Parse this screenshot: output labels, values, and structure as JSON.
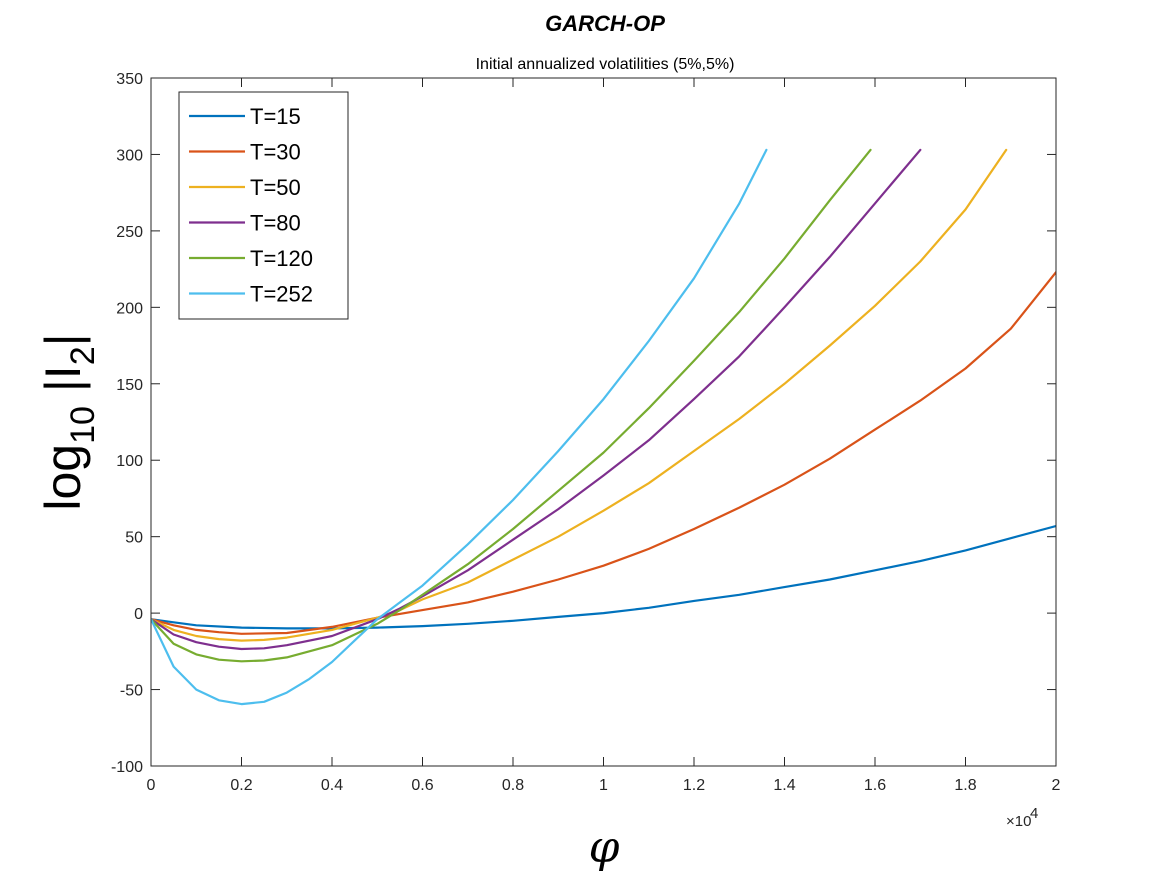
{
  "chart_data": {
    "type": "line",
    "title": "GARCH-OP",
    "subtitle": "Initial annualized volatilities (5%,5%)",
    "xlabel": "φ",
    "ylabel_base": "log",
    "ylabel_sub": "10",
    "ylabel_mid": " |I",
    "ylabel_sub2": "2",
    "ylabel_end": "|",
    "x_multiplier_prefix": "×10",
    "x_multiplier_exp": "4",
    "xlim": [
      0,
      2
    ],
    "ylim": [
      -100,
      350
    ],
    "xticks": [
      0,
      0.2,
      0.4,
      0.6,
      0.8,
      1,
      1.2,
      1.4,
      1.6,
      1.8,
      2
    ],
    "xtick_labels": [
      "0",
      "0.2",
      "0.4",
      "0.6",
      "0.8",
      "1",
      "1.2",
      "1.4",
      "1.6",
      "1.8",
      "2"
    ],
    "yticks": [
      -100,
      -50,
      0,
      50,
      100,
      150,
      200,
      250,
      300,
      350
    ],
    "ytick_labels": [
      "-100",
      "-50",
      "0",
      "50",
      "100",
      "150",
      "200",
      "250",
      "300",
      "350"
    ],
    "legend_position": "top-left",
    "grid": false,
    "series": [
      {
        "name": "T=15",
        "color": "#0072BD",
        "x": [
          0,
          0.05,
          0.1,
          0.2,
          0.3,
          0.4,
          0.5,
          0.6,
          0.7,
          0.8,
          0.9,
          1.0,
          1.1,
          1.2,
          1.3,
          1.4,
          1.5,
          1.6,
          1.7,
          1.8,
          1.9,
          2.0
        ],
        "y": [
          -4,
          -6,
          -8,
          -9.5,
          -10,
          -10,
          -9.5,
          -8.5,
          -7,
          -5,
          -2.5,
          0,
          3.5,
          8,
          12,
          17,
          22,
          28,
          34,
          41,
          49,
          57
        ]
      },
      {
        "name": "T=30",
        "color": "#D95319",
        "x": [
          0,
          0.05,
          0.1,
          0.15,
          0.2,
          0.3,
          0.4,
          0.5,
          0.6,
          0.7,
          0.8,
          0.9,
          1.0,
          1.1,
          1.2,
          1.3,
          1.4,
          1.5,
          1.6,
          1.7,
          1.8,
          1.9,
          2.0
        ],
        "y": [
          -4,
          -8,
          -11,
          -12.5,
          -13.5,
          -13,
          -9,
          -3,
          2,
          7,
          14,
          22,
          31,
          42,
          55,
          69,
          84,
          101,
          120,
          139,
          160,
          186,
          223
        ]
      },
      {
        "name": "T=50",
        "color": "#EDB120",
        "x": [
          0,
          0.05,
          0.1,
          0.15,
          0.2,
          0.25,
          0.3,
          0.4,
          0.5,
          0.55,
          0.6,
          0.7,
          0.8,
          0.9,
          1.0,
          1.1,
          1.2,
          1.3,
          1.4,
          1.5,
          1.6,
          1.7,
          1.8,
          1.89
        ],
        "y": [
          -4,
          -11,
          -15,
          -17,
          -18,
          -17.5,
          -16,
          -11,
          -3,
          2,
          9,
          20,
          35,
          50,
          67,
          85,
          106,
          127,
          150,
          175,
          201,
          230,
          264,
          303
        ]
      },
      {
        "name": "T=80",
        "color": "#7E2F8E",
        "x": [
          0,
          0.05,
          0.1,
          0.15,
          0.2,
          0.25,
          0.3,
          0.4,
          0.5,
          0.55,
          0.6,
          0.7,
          0.8,
          0.9,
          1.0,
          1.1,
          1.2,
          1.3,
          1.4,
          1.5,
          1.6,
          1.7
        ],
        "y": [
          -4,
          -14,
          -19,
          -22,
          -23.5,
          -23,
          -21,
          -15,
          -4,
          3,
          11,
          28,
          48,
          68,
          90,
          113,
          140,
          168,
          200,
          233,
          268,
          303
        ]
      },
      {
        "name": "T=120",
        "color": "#77AC30",
        "x": [
          0,
          0.05,
          0.1,
          0.15,
          0.2,
          0.25,
          0.3,
          0.4,
          0.5,
          0.55,
          0.6,
          0.7,
          0.8,
          0.9,
          1.0,
          1.1,
          1.2,
          1.3,
          1.4,
          1.5,
          1.59
        ],
        "y": [
          -4,
          -20,
          -27,
          -30.5,
          -31.5,
          -31,
          -29,
          -21,
          -7,
          2,
          12,
          32,
          55,
          80,
          105,
          134,
          165,
          197,
          232,
          270,
          303
        ]
      },
      {
        "name": "T=252",
        "color": "#4DBEEE",
        "x": [
          0,
          0.05,
          0.1,
          0.15,
          0.2,
          0.25,
          0.3,
          0.35,
          0.4,
          0.45,
          0.5,
          0.55,
          0.6,
          0.7,
          0.8,
          0.9,
          1.0,
          1.1,
          1.2,
          1.3,
          1.36
        ],
        "y": [
          -4,
          -35,
          -50,
          -57,
          -59.5,
          -58,
          -52,
          -43,
          -32,
          -18,
          -4,
          7,
          18,
          45,
          74,
          106,
          140,
          178,
          219,
          268,
          303
        ]
      }
    ]
  }
}
